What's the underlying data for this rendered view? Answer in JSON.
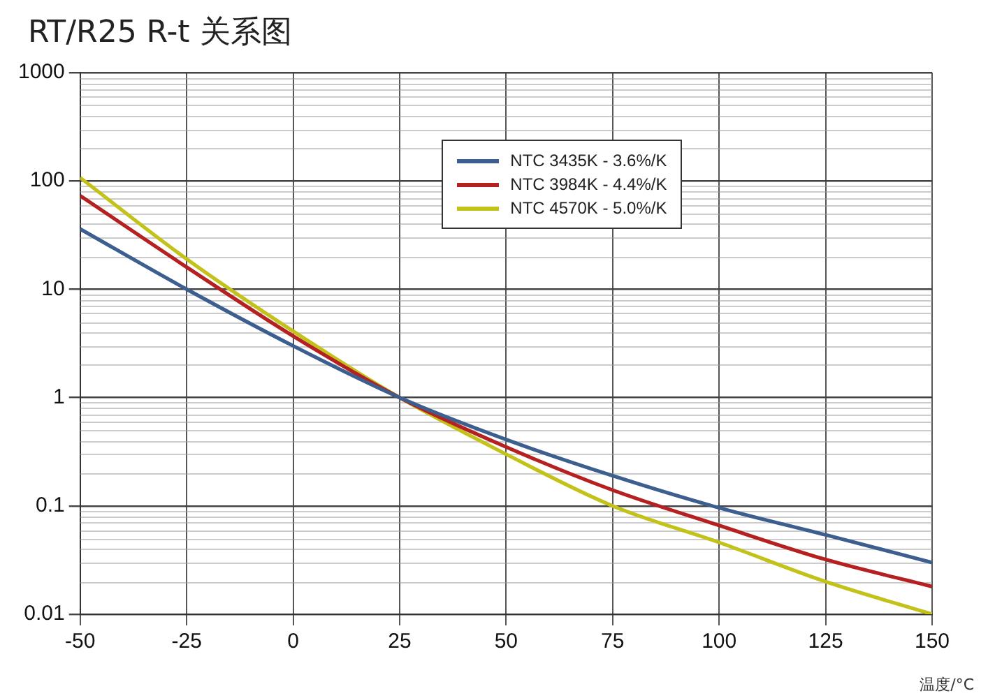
{
  "chart_data": {
    "type": "line",
    "title": "RT/R25 R-t 关系图",
    "xlabel": "温度/°C",
    "x": [
      -50,
      -25,
      0,
      25,
      50,
      75,
      100,
      125,
      150
    ],
    "series": [
      {
        "name": "NTC 3435K - 3.6%/K",
        "color": "#3d5f8f",
        "values": [
          36,
          10,
          3.0,
          1,
          0.41,
          0.19,
          0.096,
          0.054,
          0.03
        ]
      },
      {
        "name": "NTC 3984K - 4.4%/K",
        "color": "#b52020",
        "values": [
          73,
          16,
          3.7,
          1,
          0.35,
          0.14,
          0.066,
          0.032,
          0.018
        ]
      },
      {
        "name": "NTC 4570K - 5.0%/K",
        "color": "#c3c21a",
        "values": [
          107,
          19,
          4.1,
          1,
          0.3,
          0.1,
          0.046,
          0.02,
          0.01
        ]
      }
    ],
    "xlim": [
      -50,
      150
    ],
    "xticks": [
      -50,
      -25,
      0,
      25,
      50,
      75,
      100,
      125,
      150
    ],
    "ylim": [
      0.01,
      1000
    ],
    "yticks": [
      0.01,
      0.1,
      1,
      10,
      100,
      1000
    ],
    "log": "y",
    "grid": true,
    "legend": "top",
    "marker": "none",
    "line_style": "solid"
  }
}
